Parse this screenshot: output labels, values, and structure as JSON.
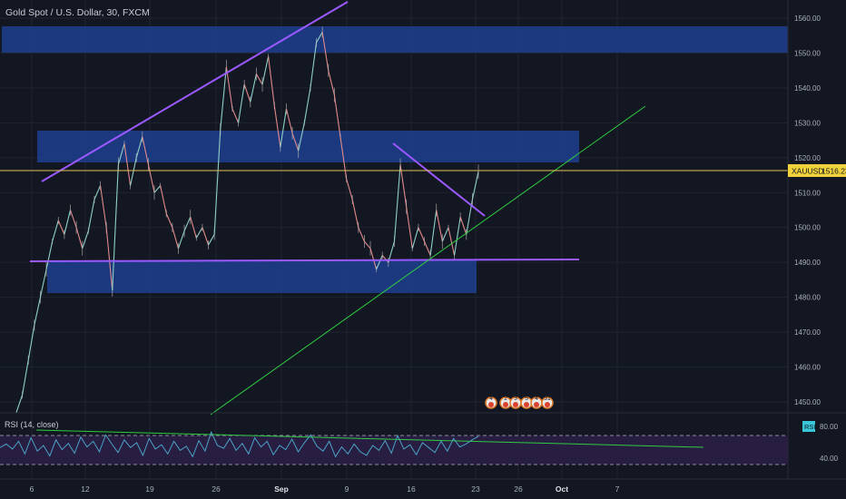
{
  "header": {
    "symbol_title": "Gold Spot / U.S. Dollar, 30, FXCM"
  },
  "price_tag": {
    "symbol": "XAUUSD",
    "value": "1516.23"
  },
  "rsi_panel": {
    "label": "RSI (14, close)",
    "badge": "RSI",
    "levels": [
      "80.00",
      "40.00"
    ]
  },
  "events": {
    "labels": [
      "4",
      "2",
      "3",
      "5",
      "4",
      "31"
    ]
  },
  "colors": {
    "background": "#131722",
    "zone": "#1e3f8f",
    "pattern_line": "#9b59ff",
    "trend_line": "#2ecc40",
    "price_line": "#e5c35a",
    "rsi_line": "#4aa3c7",
    "rsi_band": "#2b1f45",
    "price_tag": "#f0d23a",
    "rsi_badge": "#38c6d9"
  },
  "chart_data": {
    "type": "line",
    "title": "Gold Spot / U.S. Dollar, 30, FXCM",
    "x_tick_labels": [
      "6",
      "12",
      "19",
      "26",
      "Sep",
      "9",
      "16",
      "23",
      "26",
      "Oct",
      "7"
    ],
    "y_tick_labels": [
      "1560.00",
      "1550.00",
      "1540.00",
      "1530.00",
      "1520.00",
      "1510.00",
      "1500.00",
      "1490.00",
      "1480.00",
      "1470.00",
      "1460.00",
      "1450.00"
    ],
    "ylim": [
      1447,
      1563
    ],
    "last_price": 1516.23,
    "series": [
      {
        "values": [
          1447,
          1452,
          1462,
          1472,
          1480,
          1488,
          1496,
          1502,
          1498,
          1505,
          1500,
          1494,
          1499,
          1508,
          1512,
          1500,
          1482,
          1518,
          1524,
          1512,
          1520,
          1526,
          1518,
          1510,
          1512,
          1504,
          1500,
          1494,
          1499,
          1503,
          1497,
          1500,
          1495,
          1498,
          1528,
          1546,
          1534,
          1530,
          1541,
          1536,
          1544,
          1541,
          1549,
          1535,
          1523,
          1534,
          1527,
          1522,
          1530,
          1540,
          1553,
          1556,
          1545,
          1538,
          1526,
          1514,
          1508,
          1500,
          1496,
          1494,
          1488,
          1492,
          1490,
          1496,
          1518,
          1506,
          1494,
          1500,
          1496,
          1492,
          1505,
          1496,
          1500,
          1492,
          1503,
          1498,
          1508,
          1516
        ]
      },
      {
        "name": "RSI (14, close)",
        "values": [
          57,
          62,
          55,
          66,
          48,
          71,
          52,
          60,
          45,
          68,
          54,
          63,
          49,
          72,
          58,
          66,
          51,
          75,
          62,
          50,
          68,
          57,
          64,
          46,
          70,
          55,
          61,
          48,
          66,
          53,
          59,
          44,
          67,
          52,
          79,
          60,
          56,
          70,
          53,
          63,
          48,
          71,
          58,
          66,
          47,
          60,
          54,
          69,
          51,
          64,
          75,
          59,
          52,
          66,
          44,
          58,
          48,
          62,
          51,
          46,
          60,
          53,
          67,
          49,
          74,
          55,
          61,
          47,
          64,
          57,
          50,
          66,
          52,
          70,
          58,
          62,
          68,
          73
        ]
      }
    ],
    "rsi_ylim": [
      20,
      100
    ],
    "rsi_levels": [
      80,
      40
    ]
  }
}
